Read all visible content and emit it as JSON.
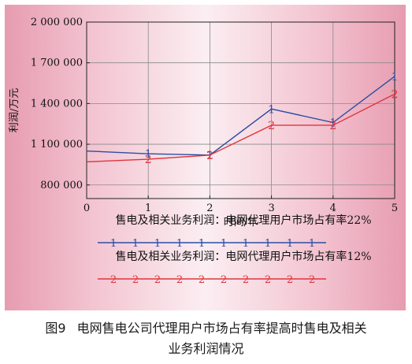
{
  "caption": {
    "number": "图9",
    "text": "电网售电公司代理用户市场占有率提高时售电及相关业务利润情况",
    "line1": "电网售电公司代理用户市场占有率提高时售电及相关",
    "line2": "业务利润情况"
  },
  "colors": {
    "series1": "#2b4ea3",
    "series2": "#e0343c",
    "grid": "#8a8a8a",
    "axis": "#222222"
  },
  "chart_data": {
    "type": "line",
    "title": "",
    "xlabel": "时间/年",
    "ylabel": "利润/万元",
    "xlim": [
      0,
      5
    ],
    "ylim": [
      700000,
      2000000
    ],
    "x_ticks": [
      0,
      1,
      2,
      3,
      4,
      5
    ],
    "x_tick_labels": [
      "0",
      "1",
      "2",
      "3",
      "4",
      "5"
    ],
    "y_ticks": [
      800000,
      1100000,
      1400000,
      1700000,
      2000000
    ],
    "y_tick_labels": [
      "800 000",
      "1 100 000",
      "1 400 000",
      "1 700 000",
      "2 000 000"
    ],
    "grid": true,
    "legend_position": "bottom",
    "series": [
      {
        "name": "售电及相关业务利润：电网代理用户市场占有率22%",
        "marker": "1",
        "x": [
          0,
          1,
          2,
          3,
          4,
          5
        ],
        "y": [
          1050000,
          1030000,
          1020000,
          1360000,
          1260000,
          1600000
        ]
      },
      {
        "name": "售电及相关业务利润：电网代理用户市场占有率12%",
        "marker": "2",
        "x": [
          0,
          1,
          2,
          3,
          4,
          5
        ],
        "y": [
          970000,
          990000,
          1020000,
          1240000,
          1240000,
          1470000
        ]
      }
    ]
  }
}
